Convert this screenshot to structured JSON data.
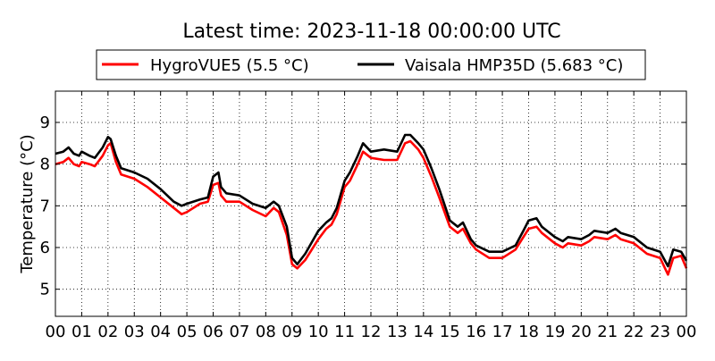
{
  "chart_data": {
    "type": "line",
    "title": "Latest time: 2023-11-18 00:00:00 UTC",
    "ylabel": "Temperature (°C)",
    "xlabel": "",
    "xlim": [
      0,
      24
    ],
    "ylim": [
      4.35,
      9.75
    ],
    "x_ticks": [
      "00",
      "01",
      "02",
      "03",
      "04",
      "05",
      "06",
      "07",
      "08",
      "09",
      "10",
      "11",
      "12",
      "13",
      "14",
      "15",
      "16",
      "17",
      "18",
      "19",
      "20",
      "21",
      "22",
      "23",
      "00"
    ],
    "y_ticks": [
      "5",
      "6",
      "7",
      "8",
      "9"
    ],
    "grid": true,
    "grid_style": "dotted",
    "legend_position": "top",
    "series": [
      {
        "name": "HygroVUE5 (5.5 °C)",
        "color": "#ff0000",
        "x": [
          0,
          0.3,
          0.5,
          0.7,
          0.9,
          1.0,
          1.3,
          1.5,
          1.8,
          2.0,
          2.1,
          2.3,
          2.5,
          3.0,
          3.5,
          4.0,
          4.5,
          4.8,
          5.0,
          5.5,
          5.8,
          6.0,
          6.2,
          6.3,
          6.5,
          7.0,
          7.5,
          8.0,
          8.3,
          8.5,
          8.8,
          9.0,
          9.2,
          9.5,
          10.0,
          10.3,
          10.5,
          10.7,
          11.0,
          11.2,
          11.5,
          11.7,
          12.0,
          12.5,
          13.0,
          13.3,
          13.5,
          13.8,
          14.0,
          14.3,
          14.6,
          15.0,
          15.3,
          15.5,
          15.8,
          16.0,
          16.5,
          17.0,
          17.5,
          17.8,
          18.0,
          18.3,
          18.5,
          19.0,
          19.3,
          19.5,
          20.0,
          20.3,
          20.5,
          21.0,
          21.3,
          21.5,
          22.0,
          22.5,
          23.0,
          23.3,
          23.5,
          23.8,
          24.0
        ],
        "values": [
          8.0,
          8.05,
          8.15,
          8.0,
          7.95,
          8.05,
          8.0,
          7.95,
          8.2,
          8.45,
          8.5,
          8.05,
          7.75,
          7.65,
          7.45,
          7.2,
          6.95,
          6.8,
          6.85,
          7.05,
          7.1,
          7.5,
          7.55,
          7.25,
          7.1,
          7.1,
          6.9,
          6.75,
          6.95,
          6.85,
          6.3,
          5.6,
          5.5,
          5.7,
          6.2,
          6.45,
          6.55,
          6.8,
          7.45,
          7.6,
          8.0,
          8.3,
          8.15,
          8.1,
          8.1,
          8.5,
          8.55,
          8.35,
          8.15,
          7.7,
          7.2,
          6.5,
          6.35,
          6.45,
          6.1,
          5.95,
          5.75,
          5.75,
          5.95,
          6.25,
          6.45,
          6.5,
          6.35,
          6.1,
          6.0,
          6.1,
          6.05,
          6.15,
          6.25,
          6.2,
          6.3,
          6.2,
          6.1,
          5.85,
          5.75,
          5.35,
          5.75,
          5.8,
          5.5
        ]
      },
      {
        "name": "Vaisala HMP35D (5.683 °C)",
        "color": "#000000",
        "x": [
          0,
          0.3,
          0.5,
          0.7,
          0.9,
          1.0,
          1.3,
          1.5,
          1.8,
          2.0,
          2.1,
          2.3,
          2.5,
          3.0,
          3.5,
          4.0,
          4.5,
          4.8,
          5.0,
          5.5,
          5.8,
          6.0,
          6.2,
          6.3,
          6.5,
          7.0,
          7.5,
          8.0,
          8.3,
          8.5,
          8.8,
          9.0,
          9.2,
          9.5,
          10.0,
          10.3,
          10.5,
          10.7,
          11.0,
          11.2,
          11.5,
          11.7,
          12.0,
          12.5,
          13.0,
          13.3,
          13.5,
          13.8,
          14.0,
          14.3,
          14.6,
          15.0,
          15.3,
          15.5,
          15.8,
          16.0,
          16.5,
          17.0,
          17.5,
          17.8,
          18.0,
          18.3,
          18.5,
          19.0,
          19.3,
          19.5,
          20.0,
          20.3,
          20.5,
          21.0,
          21.3,
          21.5,
          22.0,
          22.5,
          23.0,
          23.3,
          23.5,
          23.8,
          24.0
        ],
        "values": [
          8.25,
          8.3,
          8.4,
          8.25,
          8.2,
          8.3,
          8.2,
          8.15,
          8.4,
          8.65,
          8.6,
          8.2,
          7.9,
          7.8,
          7.65,
          7.4,
          7.1,
          7.0,
          7.05,
          7.15,
          7.2,
          7.7,
          7.8,
          7.45,
          7.3,
          7.25,
          7.05,
          6.95,
          7.1,
          7.0,
          6.5,
          5.75,
          5.6,
          5.85,
          6.4,
          6.6,
          6.7,
          6.95,
          7.6,
          7.8,
          8.2,
          8.5,
          8.3,
          8.35,
          8.3,
          8.7,
          8.7,
          8.5,
          8.35,
          7.9,
          7.4,
          6.65,
          6.5,
          6.6,
          6.2,
          6.05,
          5.9,
          5.9,
          6.05,
          6.4,
          6.65,
          6.7,
          6.5,
          6.25,
          6.15,
          6.25,
          6.2,
          6.3,
          6.4,
          6.35,
          6.45,
          6.35,
          6.25,
          6.0,
          5.9,
          5.55,
          5.95,
          5.9,
          5.683
        ]
      }
    ]
  }
}
